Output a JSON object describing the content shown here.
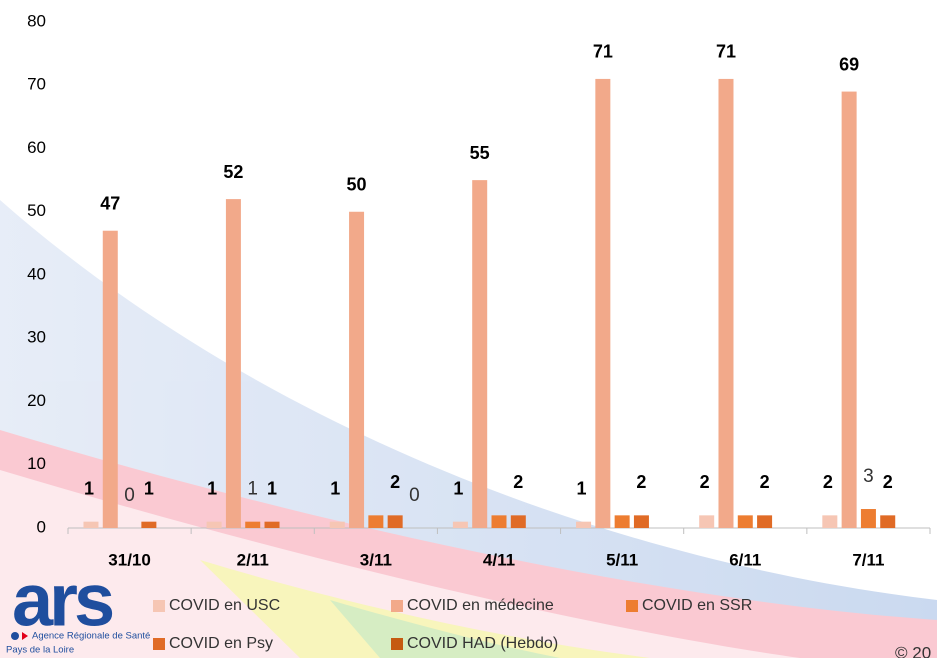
{
  "chart_data": {
    "type": "bar",
    "categories": [
      "31/10",
      "2/11",
      "3/11",
      "4/11",
      "5/11",
      "6/11",
      "7/11"
    ],
    "series": [
      {
        "name": "COVID en USC",
        "color": "#f6c6b4",
        "values": [
          1,
          1,
          1,
          1,
          1,
          2,
          2
        ],
        "value_labels": [
          "1",
          "1",
          "1",
          "1",
          "1",
          "2",
          "2"
        ]
      },
      {
        "name": "COVID en médecine",
        "color": "#f2a98a",
        "values": [
          47,
          52,
          50,
          55,
          71,
          71,
          69
        ],
        "value_labels": [
          "47",
          "52",
          "50",
          "55",
          "71",
          "71",
          "69"
        ]
      },
      {
        "name": "COVID en SSR",
        "color": "#ed7d31",
        "values": [
          0,
          1,
          2,
          2,
          2,
          2,
          3
        ],
        "value_labels": [
          "0",
          "1",
          null,
          null,
          null,
          null,
          "3"
        ]
      },
      {
        "name": "COVID en Psy",
        "color": "#e06b26",
        "values": [
          1,
          1,
          2,
          2,
          2,
          2,
          2
        ],
        "value_labels": [
          "1",
          "1",
          "2",
          "2",
          "2",
          "2",
          "2"
        ]
      },
      {
        "name": "COVID HAD (Hebdo)",
        "color": "#c55a11",
        "values": [
          null,
          null,
          0,
          null,
          null,
          null,
          null
        ],
        "value_labels": [
          null,
          null,
          "0",
          null,
          null,
          null,
          null
        ]
      }
    ],
    "ylim": [
      0,
      80
    ],
    "yticks": [
      0,
      10,
      20,
      30,
      40,
      50,
      60,
      70,
      80
    ],
    "grid": false,
    "legend": "bottom"
  },
  "logo": {
    "mark": "ars",
    "line1": "Agence Régionale de Santé",
    "line2": "Pays de la Loire"
  },
  "copyright": "© 20"
}
